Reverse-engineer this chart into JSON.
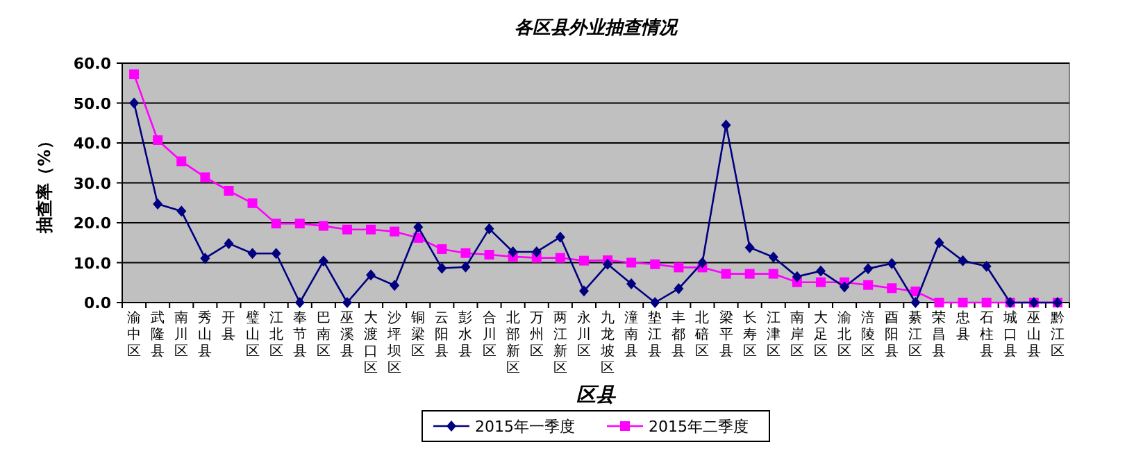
{
  "chart_data": {
    "type": "line",
    "title": "各区县外业抽查情况",
    "xlabel": "区县",
    "ylabel": "抽查率（%）",
    "categories": [
      "渝中区",
      "武隆县",
      "南川区",
      "秀山县",
      "开县",
      "璧山区",
      "江北区",
      "奉节县",
      "巴南区",
      "巫溪县",
      "大渡口区",
      "沙坪坝区",
      "铜梁区",
      "云阳县",
      "彭水县",
      "合川区",
      "北部新区",
      "万州区",
      "两江新区",
      "永川区",
      "九龙坡区",
      "潼南县",
      "垫江县",
      "丰都县",
      "北碚区",
      "梁平县",
      "长寿区",
      "江津区",
      "南岸区",
      "大足区",
      "渝北区",
      "涪陵区",
      "酉阳县",
      "綦江区",
      "荣昌县",
      "忠县",
      "石柱县",
      "城口县",
      "巫山县",
      "黔江区"
    ],
    "series": [
      {
        "name": "2015年一季度",
        "color": "#000080",
        "marker": "diamond",
        "values": [
          50,
          24.7,
          22.9,
          11.1,
          14.8,
          12.3,
          12.3,
          0,
          10.4,
          0,
          6.9,
          4.3,
          18.9,
          8.6,
          8.9,
          18.5,
          12.7,
          12.7,
          16.4,
          2.9,
          9.6,
          4.7,
          0,
          3.5,
          10,
          44.5,
          13.8,
          11.4,
          6.5,
          7.9,
          3.9,
          8.5,
          9.8,
          0,
          15,
          10.5,
          9.1,
          0,
          0,
          0
        ]
      },
      {
        "name": "2015年二季度",
        "color": "#ff00ff",
        "marker": "square",
        "values": [
          57.2,
          40.7,
          35.4,
          31.4,
          28,
          24.9,
          19.8,
          19.8,
          19.2,
          18.3,
          18.3,
          17.8,
          16.2,
          13.4,
          12.4,
          12,
          11.5,
          11.2,
          11.2,
          10.5,
          10.6,
          10,
          9.6,
          8.8,
          8.8,
          7.2,
          7.2,
          7.2,
          5.1,
          5.1,
          5.1,
          4.4,
          3.6,
          2.8,
          0,
          0,
          0,
          0,
          0,
          0
        ]
      }
    ],
    "ylim": [
      0,
      60
    ],
    "yticks": [
      {
        "value": 0,
        "label": "0.0"
      },
      {
        "value": 10,
        "label": "10.0"
      },
      {
        "value": 20,
        "label": "20.0"
      },
      {
        "value": 30,
        "label": "30.0"
      },
      {
        "value": 40,
        "label": "40.0"
      },
      {
        "value": 50,
        "label": "50.0"
      },
      {
        "value": 60,
        "label": "60.0"
      }
    ],
    "grid": "y",
    "legend": "bottom"
  }
}
